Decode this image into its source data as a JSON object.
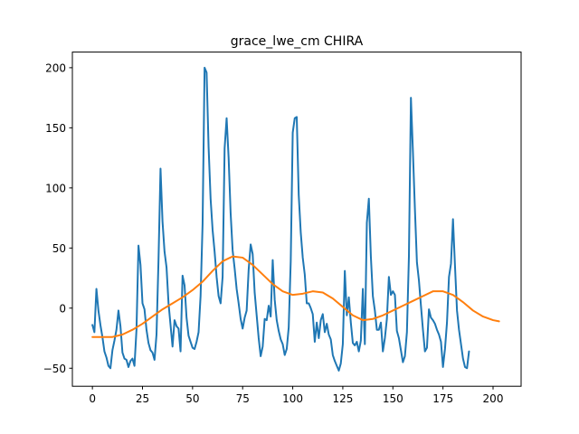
{
  "chart_data": {
    "type": "line",
    "title": "grace_lwe_cm CHIRA",
    "xlabel": "",
    "ylabel": "",
    "xlim": [
      -10,
      214
    ],
    "ylim": [
      -65,
      213
    ],
    "xticks": [
      0,
      25,
      50,
      75,
      100,
      125,
      150,
      175,
      200
    ],
    "yticks": [
      -50,
      0,
      50,
      100,
      150,
      200
    ],
    "grid": false,
    "colors": {
      "series_0": "#1f77b4",
      "series_1": "#ff7f0e",
      "axes": "#000000"
    },
    "series": [
      {
        "values": [
          -14,
          -20,
          16,
          -2,
          -14,
          -24,
          -36,
          -41,
          -48,
          -50,
          -35,
          -27,
          -18,
          -2,
          -15,
          -37,
          -42,
          -43,
          -49,
          -44,
          -42,
          -48,
          -18,
          52,
          36,
          4,
          -1,
          -18,
          -29,
          -35,
          -37,
          -43,
          -22,
          40,
          116,
          72,
          47,
          34,
          4,
          -14,
          -32,
          -10,
          -15,
          -17,
          -36,
          27,
          19,
          -8,
          -23,
          -28,
          -33,
          -34,
          -28,
          -20,
          10,
          70,
          200,
          196,
          134,
          91,
          65,
          47,
          26,
          10,
          4,
          26,
          133,
          158,
          125,
          79,
          48,
          33,
          16,
          4,
          -9,
          -17,
          -8,
          -2,
          32,
          53,
          45,
          13,
          -6,
          -25,
          -40,
          -32,
          -9,
          -10,
          2,
          -7,
          40,
          7,
          -10,
          -19,
          -26,
          -30,
          -39,
          -34,
          -16,
          39,
          146,
          158,
          159,
          94,
          63,
          42,
          28,
          4,
          4,
          0,
          -5,
          -28,
          -12,
          -25,
          -10,
          -5,
          -20,
          -13,
          -22,
          -26,
          -39,
          -44,
          -48,
          -52,
          -46,
          -30,
          31,
          -6,
          9,
          -12,
          -29,
          -31,
          -28,
          -36,
          -27,
          16,
          -30,
          71,
          91,
          43,
          10,
          -2,
          -18,
          -18,
          -12,
          -36,
          -25,
          -9,
          26,
          11,
          14,
          11,
          -19,
          -25,
          -35,
          -45,
          -40,
          -20,
          43,
          175,
          130,
          82,
          38,
          23,
          2,
          -18,
          -36,
          -33,
          -1,
          -8,
          -10,
          -13,
          -18,
          -22,
          -28,
          -49,
          -34,
          -12,
          26,
          37,
          74,
          35,
          -2,
          -18,
          -30,
          -42,
          -49,
          -50,
          -36
        ],
        "start_x": 0
      },
      {
        "x": [
          0,
          5,
          10,
          15,
          20,
          25,
          30,
          35,
          40,
          45,
          50,
          55,
          60,
          65,
          70,
          75,
          80,
          85,
          90,
          95,
          100,
          105,
          110,
          115,
          120,
          125,
          130,
          135,
          140,
          145,
          150,
          155,
          160,
          165,
          170,
          175,
          180,
          185,
          190,
          195,
          200,
          203
        ],
        "values": [
          -24,
          -24,
          -24,
          -22,
          -18,
          -13,
          -7,
          -1,
          4,
          9,
          15,
          22,
          31,
          39,
          43,
          42,
          36,
          28,
          20,
          14,
          11,
          12,
          14,
          13,
          8,
          1,
          -6,
          -10,
          -9,
          -6,
          -2,
          2,
          6,
          10,
          14,
          14,
          11,
          5,
          -2,
          -7,
          -10,
          -11
        ]
      }
    ]
  }
}
